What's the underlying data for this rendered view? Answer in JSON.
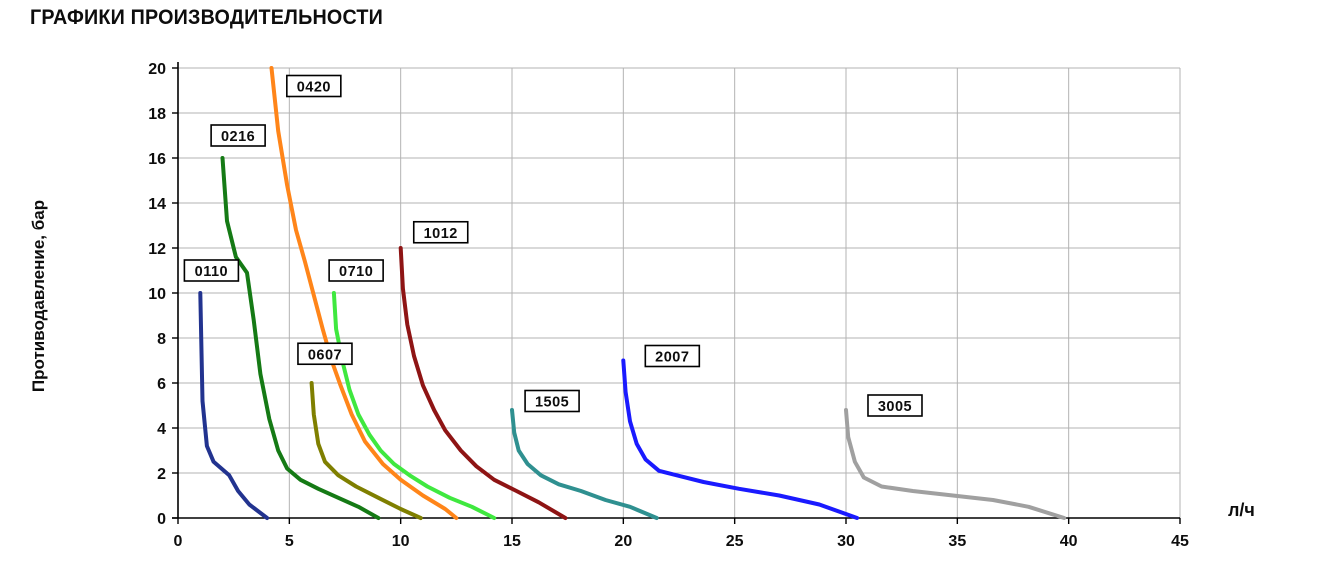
{
  "chart_data": {
    "type": "line",
    "title": "ГРАФИКИ ПРОИЗВОДИТЕЛЬНОСТИ",
    "xlabel": "л/ч",
    "ylabel": "Противодавление, бар",
    "xlim": [
      0,
      45
    ],
    "ylim": [
      0,
      20
    ],
    "x_ticks": [
      0,
      5,
      10,
      15,
      20,
      25,
      30,
      35,
      40,
      45
    ],
    "y_ticks": [
      0,
      2,
      4,
      6,
      8,
      10,
      12,
      14,
      16,
      18,
      20
    ],
    "grid": true,
    "legend_position": "inline-labels",
    "series": [
      {
        "name": "0110",
        "color": "#22338f",
        "label_anchor": {
          "x": 1.5,
          "y": 11.0
        },
        "points": [
          [
            1,
            10
          ],
          [
            1.1,
            5.2
          ],
          [
            1.3,
            3.2
          ],
          [
            1.6,
            2.5
          ],
          [
            2.3,
            1.9
          ],
          [
            2.7,
            1.2
          ],
          [
            3.2,
            0.6
          ],
          [
            4,
            0
          ]
        ]
      },
      {
        "name": "0216",
        "color": "#157a15",
        "label_anchor": {
          "x": 2.7,
          "y": 17.0
        },
        "points": [
          [
            2,
            16
          ],
          [
            2.2,
            13.2
          ],
          [
            2.6,
            11.6
          ],
          [
            3.1,
            10.9
          ],
          [
            3.4,
            8.8
          ],
          [
            3.7,
            6.4
          ],
          [
            4.1,
            4.4
          ],
          [
            4.5,
            3
          ],
          [
            4.9,
            2.2
          ],
          [
            5.5,
            1.7
          ],
          [
            6.3,
            1.3
          ],
          [
            7.2,
            0.9
          ],
          [
            8.1,
            0.5
          ],
          [
            9,
            0
          ]
        ]
      },
      {
        "name": "0420",
        "color": "#ff8519",
        "label_anchor": {
          "x": 6.1,
          "y": 19.2
        },
        "points": [
          [
            4.2,
            20
          ],
          [
            4.5,
            17.2
          ],
          [
            4.9,
            14.8
          ],
          [
            5.3,
            12.8
          ],
          [
            5.7,
            11.4
          ],
          [
            6.1,
            9.9
          ],
          [
            6.5,
            8.4
          ],
          [
            6.9,
            7
          ],
          [
            7.3,
            5.9
          ],
          [
            7.8,
            4.6
          ],
          [
            8.4,
            3.4
          ],
          [
            9.2,
            2.4
          ],
          [
            10,
            1.7
          ],
          [
            11,
            1
          ],
          [
            12,
            0.4
          ],
          [
            12.5,
            0
          ]
        ]
      },
      {
        "name": "0607",
        "color": "#7f7f00",
        "label_anchor": {
          "x": 6.6,
          "y": 7.3
        },
        "points": [
          [
            6,
            6
          ],
          [
            6.1,
            4.6
          ],
          [
            6.3,
            3.3
          ],
          [
            6.6,
            2.5
          ],
          [
            7.2,
            1.9
          ],
          [
            8,
            1.4
          ],
          [
            9,
            0.9
          ],
          [
            10,
            0.4
          ],
          [
            10.9,
            0
          ]
        ]
      },
      {
        "name": "0710",
        "color": "#3fe83f",
        "label_anchor": {
          "x": 8.0,
          "y": 11.0
        },
        "points": [
          [
            7,
            10
          ],
          [
            7.1,
            8.4
          ],
          [
            7.4,
            6.9
          ],
          [
            7.7,
            5.7
          ],
          [
            8.1,
            4.6
          ],
          [
            8.6,
            3.7
          ],
          [
            9.1,
            3
          ],
          [
            9.7,
            2.4
          ],
          [
            10.4,
            1.9
          ],
          [
            11.2,
            1.4
          ],
          [
            12.2,
            0.9
          ],
          [
            13.2,
            0.5
          ],
          [
            14.2,
            0
          ]
        ]
      },
      {
        "name": "1012",
        "color": "#8e1414",
        "label_anchor": {
          "x": 11.8,
          "y": 12.7
        },
        "points": [
          [
            10,
            12
          ],
          [
            10.1,
            10.2
          ],
          [
            10.3,
            8.6
          ],
          [
            10.6,
            7.2
          ],
          [
            11,
            5.9
          ],
          [
            11.5,
            4.8
          ],
          [
            12,
            3.9
          ],
          [
            12.7,
            3
          ],
          [
            13.4,
            2.3
          ],
          [
            14.2,
            1.7
          ],
          [
            15.2,
            1.2
          ],
          [
            16.2,
            0.7
          ],
          [
            17.4,
            0
          ]
        ]
      },
      {
        "name": "1505",
        "color": "#2f9090",
        "label_anchor": {
          "x": 16.8,
          "y": 5.2
        },
        "points": [
          [
            15,
            4.8
          ],
          [
            15.1,
            3.8
          ],
          [
            15.3,
            3
          ],
          [
            15.7,
            2.4
          ],
          [
            16.3,
            1.9
          ],
          [
            17.1,
            1.5
          ],
          [
            18.1,
            1.2
          ],
          [
            19.2,
            0.8
          ],
          [
            20.3,
            0.5
          ],
          [
            21.5,
            0
          ]
        ]
      },
      {
        "name": "2007",
        "color": "#1a1aff",
        "label_anchor": {
          "x": 22.2,
          "y": 7.2
        },
        "points": [
          [
            20,
            7
          ],
          [
            20.1,
            5.6
          ],
          [
            20.3,
            4.3
          ],
          [
            20.6,
            3.3
          ],
          [
            21,
            2.6
          ],
          [
            21.6,
            2.1
          ],
          [
            22.4,
            1.9
          ],
          [
            23.6,
            1.6
          ],
          [
            25.2,
            1.3
          ],
          [
            27,
            1
          ],
          [
            28.8,
            0.6
          ],
          [
            30.5,
            0
          ]
        ]
      },
      {
        "name": "3005",
        "color": "#a0a0a0",
        "label_anchor": {
          "x": 32.2,
          "y": 5.0
        },
        "points": [
          [
            30,
            4.8
          ],
          [
            30.1,
            3.6
          ],
          [
            30.4,
            2.5
          ],
          [
            30.8,
            1.8
          ],
          [
            31.6,
            1.4
          ],
          [
            33,
            1.2
          ],
          [
            34.8,
            1
          ],
          [
            36.6,
            0.8
          ],
          [
            38.2,
            0.5
          ],
          [
            39.8,
            0
          ]
        ]
      }
    ],
    "colors": {
      "axis": "#000000",
      "grid": "#b3b3b3",
      "label_box_bg": "#ffffff",
      "label_box_border": "#000000",
      "text": "#0d0d0d"
    }
  }
}
